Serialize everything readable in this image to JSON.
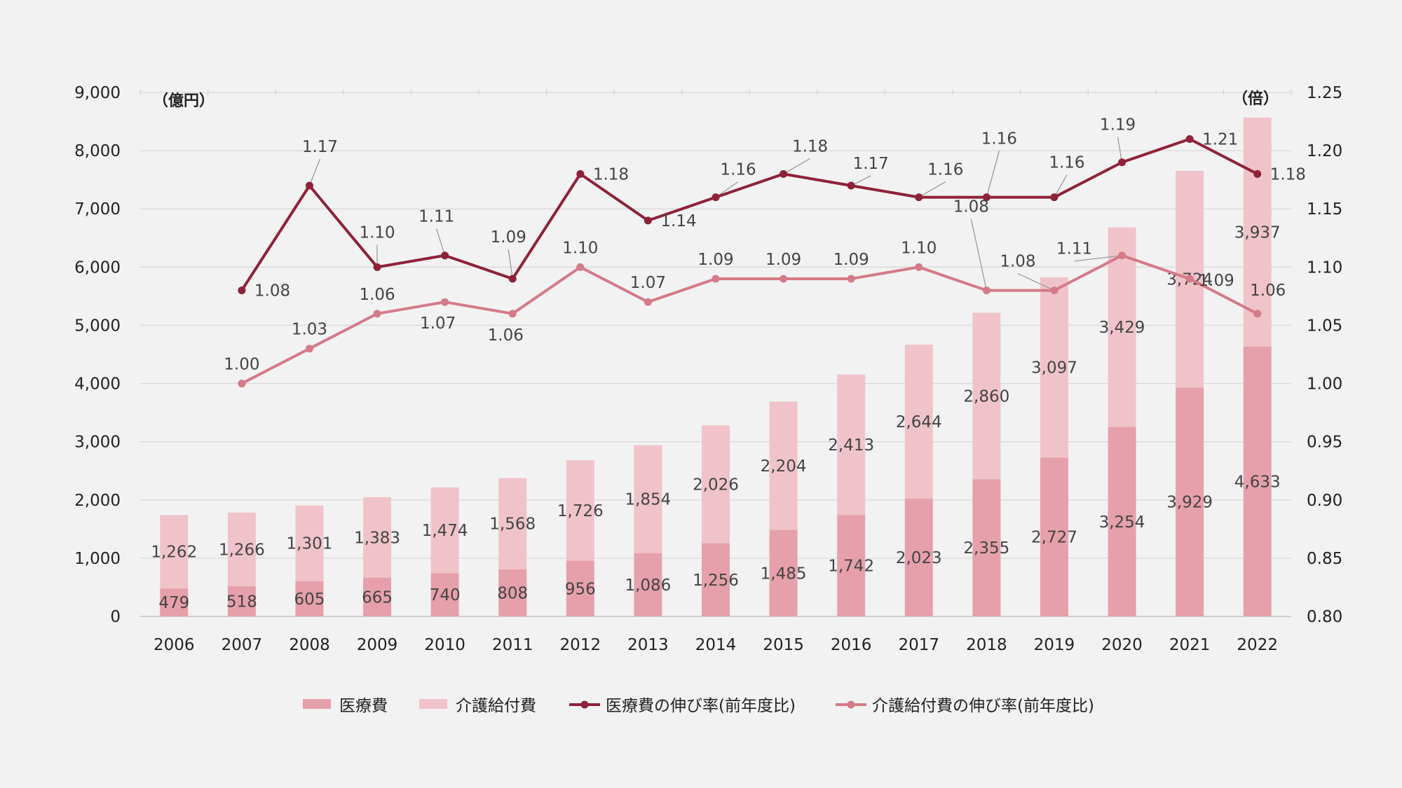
{
  "chart_data": {
    "type": "bar",
    "left_unit": "（億円）",
    "right_unit": "（倍）",
    "categories": [
      "2006",
      "2007",
      "2008",
      "2009",
      "2010",
      "2011",
      "2012",
      "2013",
      "2014",
      "2015",
      "2016",
      "2017",
      "2018",
      "2019",
      "2020",
      "2021",
      "2022"
    ],
    "left_ylim": [
      0,
      9000
    ],
    "left_ticks": [
      "0",
      "1,000",
      "2,000",
      "3,000",
      "4,000",
      "5,000",
      "6,000",
      "7,000",
      "8,000",
      "9,000"
    ],
    "right_ylim": [
      0.8,
      1.25
    ],
    "right_ticks": [
      "0.80",
      "0.85",
      "0.90",
      "0.95",
      "1.00",
      "1.05",
      "1.10",
      "1.15",
      "1.20",
      "1.25"
    ],
    "grid": true,
    "legend_position": "bottom",
    "series": [
      {
        "name": "医療費",
        "type": "stacked-bar",
        "color": "#e6a0ab",
        "values": [
          479,
          518,
          605,
          665,
          740,
          808,
          956,
          1086,
          1256,
          1485,
          1742,
          2023,
          2355,
          2727,
          3254,
          3929,
          4633
        ],
        "labels": [
          "479",
          "518",
          "605",
          "665",
          "740",
          "808",
          "956",
          "1,086",
          "1,256",
          "1,485",
          "1,742",
          "2,023",
          "2,355",
          "2,727",
          "3,254",
          "3,929",
          "4,633"
        ]
      },
      {
        "name": "介護給付費",
        "type": "stacked-bar",
        "color": "#f0c3ca",
        "values": [
          1262,
          1266,
          1301,
          1383,
          1474,
          1568,
          1726,
          1854,
          2026,
          2204,
          2413,
          2644,
          2860,
          3097,
          3429,
          3724,
          3937
        ],
        "labels": [
          "1,262",
          "1,266",
          "1,301",
          "1,383",
          "1,474",
          "1,568",
          "1,726",
          "1,854",
          "2,026",
          "2,204",
          "2,413",
          "2,644",
          "2,860",
          "3,097",
          "3,429",
          "3,724",
          "3,937"
        ]
      },
      {
        "name": "医療費の伸び率(前年度比)",
        "type": "line",
        "axis": "right",
        "color": "#8e2238",
        "values": [
          null,
          1.08,
          1.17,
          1.1,
          1.11,
          1.09,
          1.18,
          1.14,
          1.16,
          1.18,
          1.17,
          1.16,
          1.16,
          1.16,
          1.19,
          1.21,
          1.18
        ],
        "labels": [
          "",
          "1.08",
          "1.17",
          "1.10",
          "1.11",
          "1.09",
          "1.18",
          "1.14",
          "1.16",
          "1.18",
          "1.17",
          "1.16",
          "1.16",
          "1.16",
          "1.19",
          "1.21",
          "1.18"
        ]
      },
      {
        "name": "介護給付費の伸び率(前年度比)",
        "type": "line",
        "axis": "right",
        "color": "#d47a88",
        "values": [
          null,
          1.0,
          1.03,
          1.06,
          1.07,
          1.06,
          1.1,
          1.07,
          1.09,
          1.09,
          1.09,
          1.1,
          1.08,
          1.08,
          1.11,
          1.09,
          1.06
        ],
        "labels": [
          "",
          "1.00",
          "1.03",
          "1.06",
          "1.07",
          "1.06",
          "1.10",
          "1.07",
          "1.09",
          "1.09",
          "1.09",
          "1.10",
          "1.08",
          "1.08",
          "1.11",
          "1.09",
          "1.06"
        ]
      }
    ]
  }
}
